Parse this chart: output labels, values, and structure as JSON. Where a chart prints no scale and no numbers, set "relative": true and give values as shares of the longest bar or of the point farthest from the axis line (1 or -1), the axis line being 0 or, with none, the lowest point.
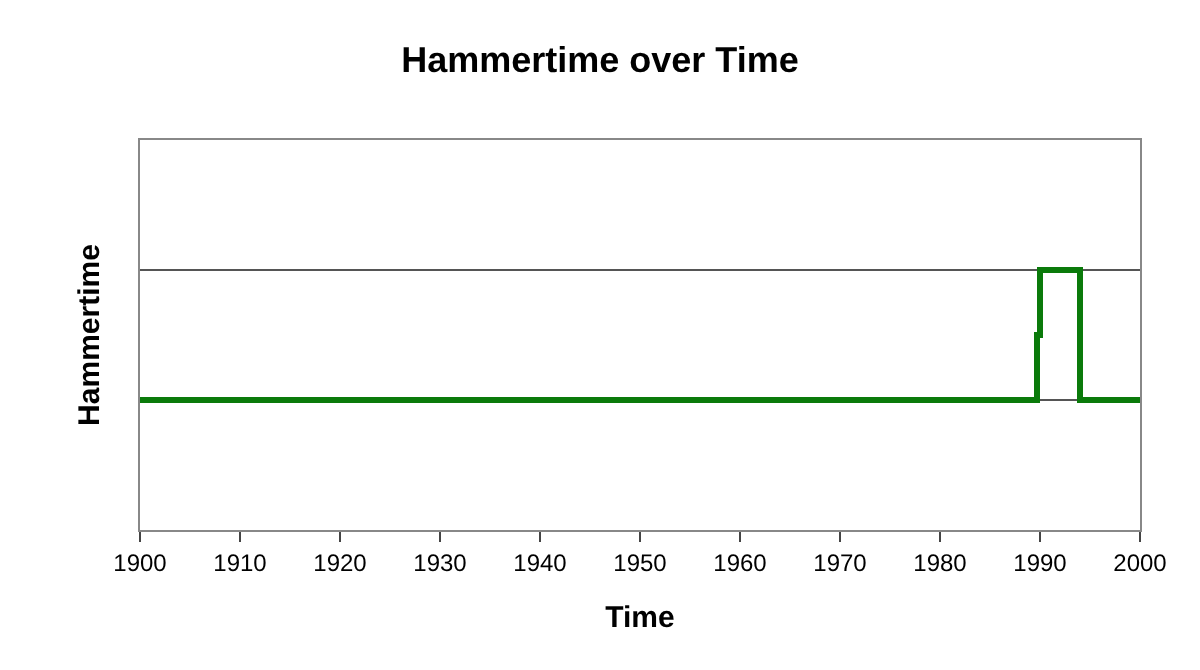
{
  "chart_data": {
    "type": "line",
    "title": "Hammertime over Time",
    "xlabel": "Time",
    "ylabel": "Hammertime",
    "relative": true,
    "x": [
      1900,
      1989.7,
      1989.7,
      1990,
      1990,
      1994,
      1994,
      2000
    ],
    "series": [
      {
        "color": "#0a7a0a",
        "values": [
          0.5,
          0.5,
          0.75,
          0.75,
          1,
          1,
          0.5,
          0.5
        ]
      }
    ],
    "xlim": [
      1900,
      2000
    ],
    "xticks": [
      1900,
      1910,
      1920,
      1930,
      1940,
      1950,
      1960,
      1970,
      1980,
      1990,
      2000
    ],
    "ref_lines": [
      {
        "axis": "y",
        "value": 0.5,
        "color": "#555555"
      },
      {
        "axis": "y",
        "value": 1,
        "color": "#555555"
      }
    ],
    "legend": false,
    "marker": "none",
    "line_style": "solid"
  }
}
